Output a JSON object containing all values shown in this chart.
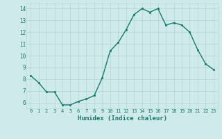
{
  "x": [
    0,
    1,
    2,
    3,
    4,
    5,
    6,
    7,
    8,
    9,
    10,
    11,
    12,
    13,
    14,
    15,
    16,
    17,
    18,
    19,
    20,
    21,
    22,
    23
  ],
  "y": [
    8.3,
    7.7,
    6.9,
    6.9,
    5.8,
    5.8,
    6.1,
    6.3,
    6.6,
    8.1,
    10.4,
    11.1,
    12.2,
    13.5,
    14.0,
    13.7,
    14.0,
    12.6,
    12.8,
    12.6,
    12.0,
    10.5,
    9.3,
    8.8
  ],
  "xlabel": "Humidex (Indice chaleur)",
  "ylim": [
    5.5,
    14.5
  ],
  "xlim": [
    -0.5,
    23.5
  ],
  "yticks": [
    6,
    7,
    8,
    9,
    10,
    11,
    12,
    13,
    14
  ],
  "xticks": [
    0,
    1,
    2,
    3,
    4,
    5,
    6,
    7,
    8,
    9,
    10,
    11,
    12,
    13,
    14,
    15,
    16,
    17,
    18,
    19,
    20,
    21,
    22,
    23
  ],
  "xtick_labels": [
    "0",
    "1",
    "2",
    "3",
    "4",
    "5",
    "6",
    "7",
    "8",
    "9",
    "10",
    "11",
    "12",
    "13",
    "14",
    "15",
    "16",
    "17",
    "18",
    "19",
    "20",
    "21",
    "22",
    "23"
  ],
  "line_color": "#1a7a6a",
  "marker_color": "#1a7a6a",
  "bg_color": "#ceeaea",
  "grid_color": "#b8d8d8",
  "tick_color": "#1a7a6a",
  "label_color": "#1a7a6a"
}
